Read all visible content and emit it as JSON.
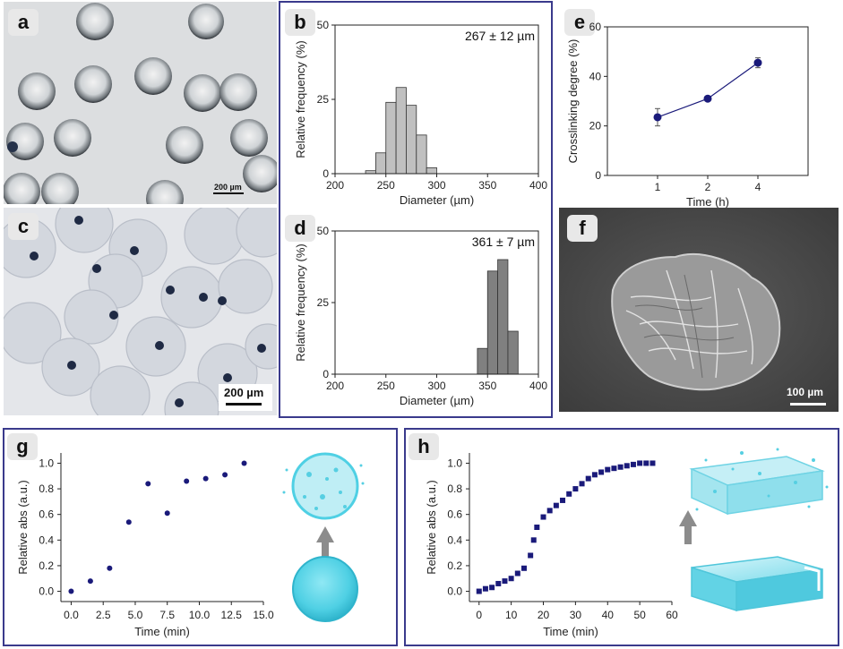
{
  "panels": {
    "a": {
      "letter": "a",
      "scale_label": "200 µm"
    },
    "b": {
      "letter": "b"
    },
    "c": {
      "letter": "c",
      "scale_label": "200 µm"
    },
    "d": {
      "letter": "d"
    },
    "e": {
      "letter": "e"
    },
    "f": {
      "letter": "f",
      "scale_label": "100 µm"
    },
    "g": {
      "letter": "g"
    },
    "h": {
      "letter": "h"
    }
  },
  "colors": {
    "frame": "#3a3a8c",
    "bar_fill": "#c0c0c0",
    "bar_fill_dark": "#808080",
    "marker": "#1a1a7a",
    "cyan": "#4fd0e4"
  },
  "chart_data": [
    {
      "id": "b",
      "type": "bar",
      "annotation": "267 ± 12 µm",
      "xlabel": "Diameter (µm)",
      "ylabel": "Relative frequency (%)",
      "xlim": [
        200,
        400
      ],
      "ylim": [
        0,
        50
      ],
      "xticks": [
        200,
        250,
        300,
        350,
        400
      ],
      "yticks": [
        0,
        25,
        50
      ],
      "bin_width": 10,
      "bins": [
        230,
        240,
        250,
        260,
        270,
        280,
        290
      ],
      "values": [
        1,
        7,
        24,
        29,
        23,
        13,
        2
      ]
    },
    {
      "id": "d",
      "type": "bar",
      "annotation": "361 ± 7 µm",
      "xlabel": "Diameter (µm)",
      "ylabel": "Relative frequency (%)",
      "xlim": [
        200,
        400
      ],
      "ylim": [
        0,
        50
      ],
      "xticks": [
        200,
        250,
        300,
        350,
        400
      ],
      "yticks": [
        0,
        25,
        50
      ],
      "bin_width": 10,
      "bins": [
        340,
        350,
        360,
        370
      ],
      "values": [
        9,
        36,
        40,
        15
      ]
    },
    {
      "id": "e",
      "type": "line",
      "xlabel": "Time (h)",
      "ylabel": "Crosslinking degree (%)",
      "ylim": [
        0,
        60
      ],
      "yticks": [
        0,
        20,
        40,
        60
      ],
      "categories": [
        "1",
        "2",
        "4"
      ],
      "values": [
        23.5,
        31,
        45.5
      ],
      "errors": [
        3.5,
        1,
        2
      ]
    },
    {
      "id": "g",
      "type": "scatter",
      "xlabel": "Time (min)",
      "ylabel": "Relative abs (a.u.)",
      "xlim": [
        -0.8,
        15
      ],
      "ylim": [
        -0.08,
        1.08
      ],
      "xticks": [
        "0.0",
        "2.5",
        "5.0",
        "7.5",
        "10.0",
        "12.5",
        "15.0"
      ],
      "yticks": [
        "0.0",
        "0.2",
        "0.4",
        "0.6",
        "0.8",
        "1.0"
      ],
      "x": [
        0,
        1.5,
        3,
        4.5,
        6,
        7.5,
        9,
        10.5,
        12,
        13.5
      ],
      "y": [
        0,
        0.08,
        0.18,
        0.54,
        0.84,
        0.61,
        0.86,
        0.88,
        0.91,
        1.0
      ]
    },
    {
      "id": "h",
      "type": "scatter",
      "xlabel": "Time (min)",
      "ylabel": "Relative abs (a.u.)",
      "xlim": [
        -3,
        60
      ],
      "ylim": [
        -0.08,
        1.08
      ],
      "xticks": [
        "0",
        "10",
        "20",
        "30",
        "40",
        "50",
        "60"
      ],
      "yticks": [
        "0.0",
        "0.2",
        "0.4",
        "0.6",
        "0.8",
        "1.0"
      ],
      "x": [
        0,
        2,
        4,
        6,
        8,
        10,
        12,
        14,
        16,
        17,
        18,
        20,
        22,
        24,
        26,
        28,
        30,
        32,
        34,
        36,
        38,
        40,
        42,
        44,
        46,
        48,
        50,
        52,
        54
      ],
      "y": [
        0,
        0.02,
        0.03,
        0.06,
        0.08,
        0.1,
        0.14,
        0.18,
        0.28,
        0.4,
        0.5,
        0.58,
        0.63,
        0.67,
        0.71,
        0.76,
        0.8,
        0.84,
        0.88,
        0.91,
        0.93,
        0.95,
        0.96,
        0.97,
        0.98,
        0.99,
        1.0,
        1.0,
        1.0
      ]
    }
  ]
}
